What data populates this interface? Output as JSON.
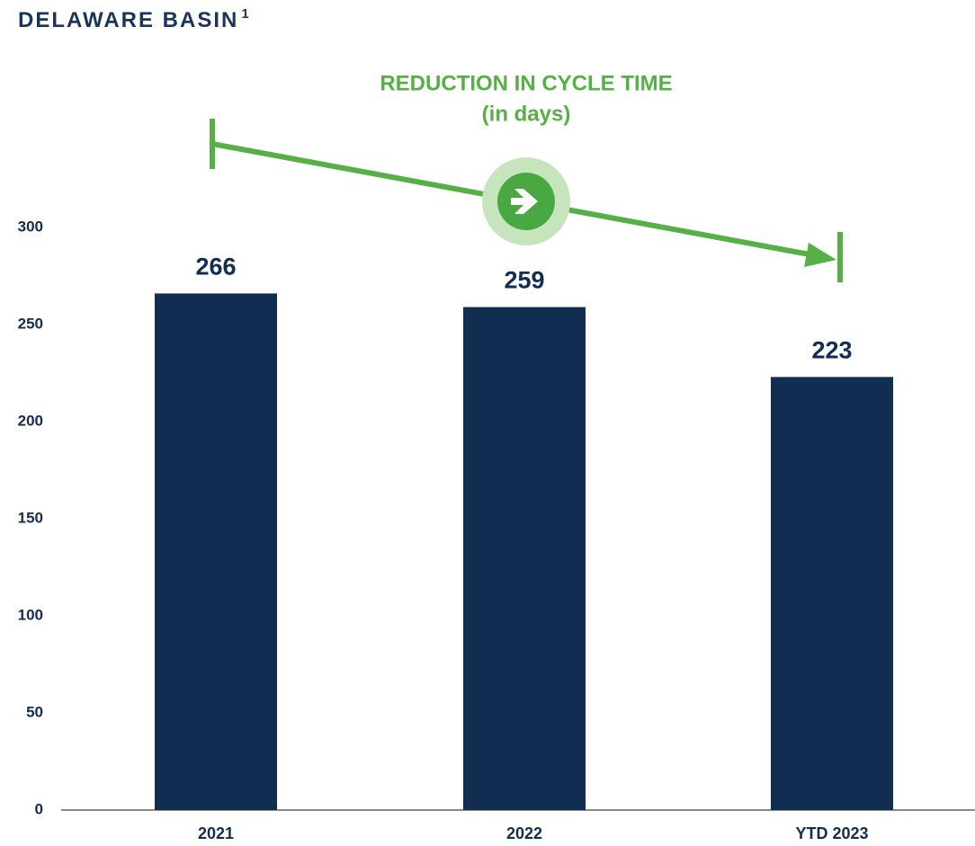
{
  "chart_data": {
    "type": "bar",
    "title": "DELAWARE BASIN",
    "title_superscript": "1",
    "annotation": [
      "REDUCTION IN CYCLE TIME",
      "(in days)"
    ],
    "categories": [
      "2021",
      "2022",
      "YTD 2023"
    ],
    "values": [
      266,
      259,
      223
    ],
    "color": "#122d52",
    "ylim": [
      0,
      300
    ],
    "yticks": [
      0,
      50,
      100,
      150,
      200,
      250,
      300
    ],
    "grid": false
  }
}
